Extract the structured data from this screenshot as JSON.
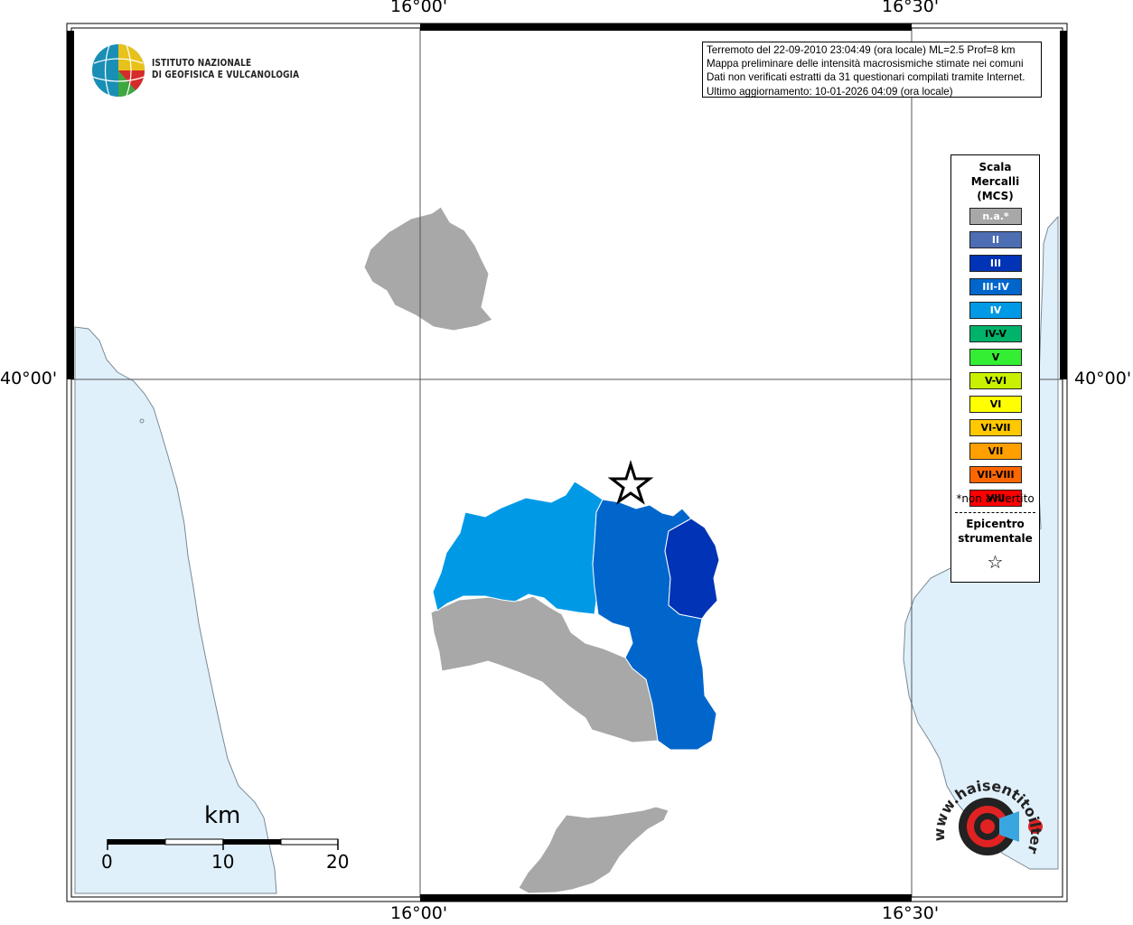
{
  "ticks": {
    "lon_left": "16°00'",
    "lon_right": "16°30'",
    "lat": "40°00'"
  },
  "info": {
    "line1": "Terremoto del 22-09-2010 23:04:49 (ora locale) ML=2.5 Prof=8 km",
    "line2": "Mappa preliminare delle intensità macrosismiche stimate nei comuni",
    "line3": "Dati non verificati estratti da 31 questionari compilati tramite Internet.",
    "line4": "Ultimo aggiornamento: 10-01-2026 04:09 (ora locale)"
  },
  "institute": {
    "line1": "ISTITUTO NAZIONALE",
    "line2": "DI GEOFISICA E VULCANOLOGIA"
  },
  "legend": {
    "title": [
      "Scala",
      "Mercalli",
      "(MCS)"
    ],
    "items": [
      {
        "label": "n.a.*",
        "color": "#a8a8a8"
      },
      {
        "label": "II",
        "color": "#4d6eb3"
      },
      {
        "label": "III",
        "color": "#0033b5"
      },
      {
        "label": "III-IV",
        "color": "#0066cc"
      },
      {
        "label": "IV",
        "color": "#0099e6"
      },
      {
        "label": "IV-V",
        "color": "#00b36b"
      },
      {
        "label": "V",
        "color": "#33ee33"
      },
      {
        "label": "V-VI",
        "color": "#c8f000"
      },
      {
        "label": "VI",
        "color": "#ffff00"
      },
      {
        "label": "VI-VII",
        "color": "#ffc800"
      },
      {
        "label": "VII",
        "color": "#ff9f00"
      },
      {
        "label": "VII-VIII",
        "color": "#ff6600"
      },
      {
        "label": "VIII",
        "color": "#ff0000"
      }
    ],
    "note": "*non avvertito",
    "epicenter": [
      "Epicentro",
      "strumentale"
    ]
  },
  "scale": {
    "unit": "km",
    "labels": [
      "0",
      "10",
      "20"
    ]
  },
  "colors": {
    "sea": "#dff0fb",
    "municipality_na": "#a8a8a8",
    "intensity_III": "#0033b5",
    "intensity_III_IV": "#0066cc",
    "intensity_IV": "#0099e6"
  },
  "logo_hsit": {
    "text": "www.haisentitoilterremoto.it"
  }
}
